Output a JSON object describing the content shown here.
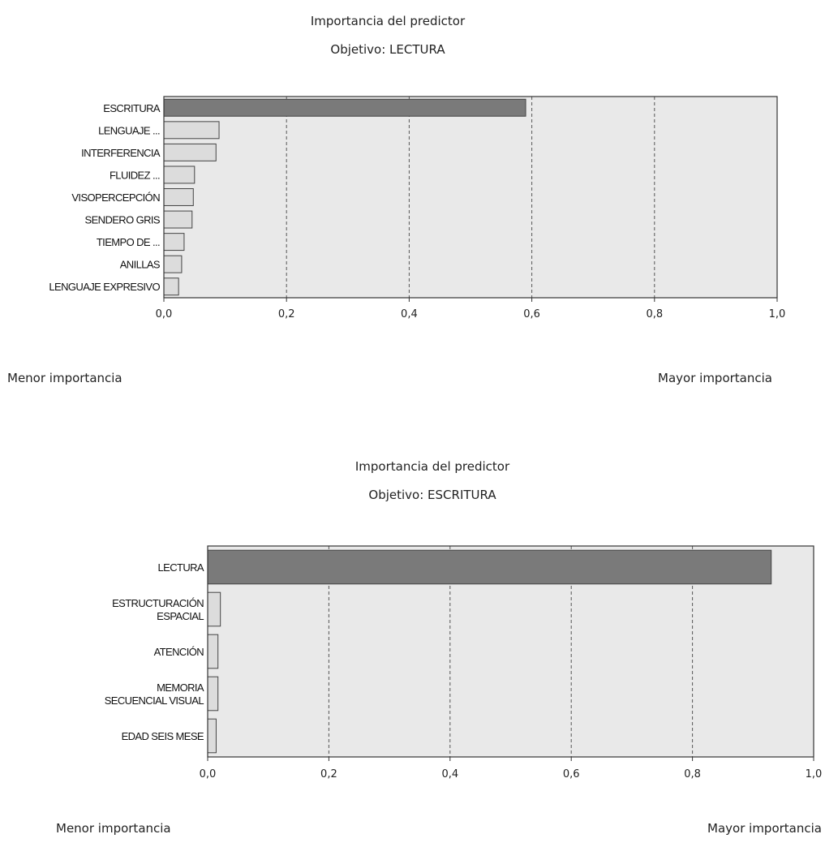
{
  "chart_data": [
    {
      "type": "bar",
      "orientation": "horizontal",
      "title": "Importancia del predictor",
      "subtitle": "Objetivo: LECTURA",
      "categories": [
        "ESCRITURA",
        "LENGUAJE ...",
        "INTERFERENCIA",
        "FLUIDEZ ...",
        "VISOPERCEPCIÓN",
        "SENDERO GRIS",
        "TIEMPO DE ...",
        "ANILLAS",
        "LENGUAJE EXPRESIVO"
      ],
      "values": [
        0.59,
        0.09,
        0.085,
        0.05,
        0.048,
        0.046,
        0.033,
        0.029,
        0.024
      ],
      "xlim": [
        0,
        1
      ],
      "xticks": [
        "0,0",
        "0,2",
        "0,4",
        "0,6",
        "0,8",
        "1,0"
      ],
      "grid": true,
      "footer_left": "Menor importancia",
      "footer_right": "Mayor importancia",
      "colors": {
        "highlight": "#7a7a7a",
        "bar": "#dcdcdc",
        "plot_bg": "#e9e9e9",
        "border": "#333333"
      }
    },
    {
      "type": "bar",
      "orientation": "horizontal",
      "title": "Importancia del predictor",
      "subtitle": "Objetivo: ESCRITURA",
      "categories": [
        [
          "LECTURA"
        ],
        [
          "ESTRUCTURACIÓN",
          "ESPACIAL"
        ],
        [
          "ATENCIÓN"
        ],
        [
          "MEMORIA",
          "SECUENCIAL VISUAL"
        ],
        [
          "EDAD SEIS MESE"
        ]
      ],
      "values": [
        0.93,
        0.021,
        0.017,
        0.017,
        0.014
      ],
      "xlim": [
        0,
        1
      ],
      "xticks": [
        "0,0",
        "0,2",
        "0,4",
        "0,6",
        "0,8",
        "1,0"
      ],
      "grid": true,
      "footer_left": "Menor importancia",
      "footer_right": "Mayor importancia",
      "colors": {
        "highlight": "#7a7a7a",
        "bar": "#dcdcdc",
        "plot_bg": "#e9e9e9",
        "border": "#333333"
      }
    }
  ]
}
